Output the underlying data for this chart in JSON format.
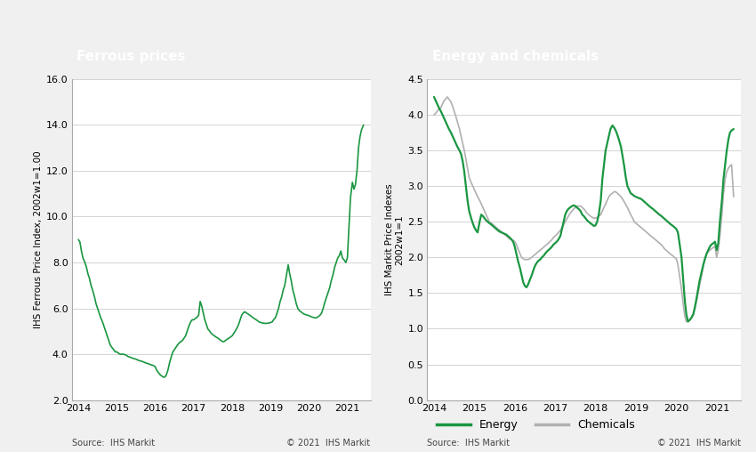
{
  "ferrous_title": "Ferrous prices",
  "energy_title": "Energy and chemicals",
  "ferrous_ylabel": "IHS Ferrous Price Index, 2002w1=1.00",
  "energy_ylabel": "IHS Markit Price Indexes\n2002w1=1",
  "source_text": "Source:  IHS Markit",
  "copyright_text": "© 2021  IHS Markit",
  "header_color": "#8c8c8c",
  "header_text_color": "#ffffff",
  "line_color_green": "#1a9641",
  "line_color_gray": "#b0b0b0",
  "bg_color": "#f0f0f0",
  "plot_bg_color": "#ffffff",
  "ferrous_ylim": [
    2.0,
    16.0
  ],
  "ferrous_yticks": [
    2.0,
    4.0,
    6.0,
    8.0,
    10.0,
    12.0,
    14.0,
    16.0
  ],
  "energy_ylim": [
    0.0,
    4.5
  ],
  "energy_yticks": [
    0.0,
    0.5,
    1.0,
    1.5,
    2.0,
    2.5,
    3.0,
    3.5,
    4.0,
    4.5
  ],
  "ferrous_x": [
    2014.0,
    2014.04,
    2014.08,
    2014.12,
    2014.17,
    2014.21,
    2014.25,
    2014.29,
    2014.33,
    2014.37,
    2014.42,
    2014.46,
    2014.5,
    2014.54,
    2014.58,
    2014.63,
    2014.67,
    2014.71,
    2014.75,
    2014.79,
    2014.83,
    2014.87,
    2014.92,
    2014.96,
    2015.0,
    2015.04,
    2015.08,
    2015.13,
    2015.17,
    2015.21,
    2015.25,
    2015.29,
    2015.33,
    2015.37,
    2015.42,
    2015.46,
    2015.5,
    2015.54,
    2015.58,
    2015.63,
    2015.67,
    2015.71,
    2015.75,
    2015.79,
    2015.83,
    2015.87,
    2015.92,
    2015.96,
    2016.0,
    2016.04,
    2016.08,
    2016.13,
    2016.17,
    2016.21,
    2016.25,
    2016.29,
    2016.33,
    2016.37,
    2016.42,
    2016.46,
    2016.5,
    2016.54,
    2016.58,
    2016.63,
    2016.67,
    2016.71,
    2016.75,
    2016.79,
    2016.83,
    2016.87,
    2016.92,
    2016.96,
    2017.0,
    2017.04,
    2017.08,
    2017.13,
    2017.17,
    2017.21,
    2017.25,
    2017.29,
    2017.33,
    2017.37,
    2017.42,
    2017.46,
    2017.5,
    2017.54,
    2017.58,
    2017.63,
    2017.67,
    2017.71,
    2017.75,
    2017.79,
    2017.83,
    2017.87,
    2017.92,
    2017.96,
    2018.0,
    2018.04,
    2018.08,
    2018.13,
    2018.17,
    2018.21,
    2018.25,
    2018.29,
    2018.33,
    2018.37,
    2018.42,
    2018.46,
    2018.5,
    2018.54,
    2018.58,
    2018.63,
    2018.67,
    2018.71,
    2018.75,
    2018.79,
    2018.83,
    2018.87,
    2018.92,
    2018.96,
    2019.0,
    2019.04,
    2019.08,
    2019.13,
    2019.17,
    2019.21,
    2019.25,
    2019.29,
    2019.33,
    2019.37,
    2019.42,
    2019.46,
    2019.5,
    2019.54,
    2019.58,
    2019.63,
    2019.67,
    2019.71,
    2019.75,
    2019.79,
    2019.83,
    2019.87,
    2019.92,
    2019.96,
    2020.0,
    2020.04,
    2020.08,
    2020.13,
    2020.17,
    2020.21,
    2020.25,
    2020.29,
    2020.33,
    2020.37,
    2020.42,
    2020.46,
    2020.5,
    2020.54,
    2020.58,
    2020.63,
    2020.67,
    2020.71,
    2020.75,
    2020.79,
    2020.83,
    2020.87,
    2020.92,
    2020.96,
    2021.0,
    2021.04,
    2021.08,
    2021.13,
    2021.17,
    2021.21,
    2021.25,
    2021.29,
    2021.33,
    2021.37,
    2021.42
  ],
  "ferrous_y": [
    9.0,
    8.9,
    8.5,
    8.2,
    8.0,
    7.8,
    7.5,
    7.3,
    7.0,
    6.8,
    6.5,
    6.2,
    6.0,
    5.8,
    5.6,
    5.4,
    5.2,
    5.0,
    4.8,
    4.6,
    4.4,
    4.3,
    4.2,
    4.1,
    4.1,
    4.05,
    4.0,
    4.0,
    4.0,
    3.98,
    3.95,
    3.9,
    3.88,
    3.85,
    3.82,
    3.8,
    3.78,
    3.75,
    3.72,
    3.7,
    3.68,
    3.65,
    3.62,
    3.6,
    3.58,
    3.55,
    3.52,
    3.5,
    3.45,
    3.3,
    3.2,
    3.1,
    3.05,
    3.0,
    3.0,
    3.1,
    3.3,
    3.6,
    3.9,
    4.1,
    4.2,
    4.3,
    4.4,
    4.5,
    4.55,
    4.6,
    4.7,
    4.8,
    5.0,
    5.2,
    5.4,
    5.5,
    5.5,
    5.55,
    5.6,
    5.7,
    6.3,
    6.1,
    5.8,
    5.5,
    5.3,
    5.1,
    5.0,
    4.9,
    4.85,
    4.8,
    4.75,
    4.7,
    4.65,
    4.6,
    4.55,
    4.55,
    4.6,
    4.65,
    4.7,
    4.75,
    4.8,
    4.9,
    5.0,
    5.15,
    5.3,
    5.5,
    5.7,
    5.8,
    5.85,
    5.8,
    5.75,
    5.7,
    5.65,
    5.6,
    5.55,
    5.5,
    5.45,
    5.4,
    5.38,
    5.36,
    5.35,
    5.34,
    5.35,
    5.36,
    5.38,
    5.4,
    5.5,
    5.6,
    5.8,
    6.0,
    6.3,
    6.5,
    6.8,
    7.0,
    7.5,
    7.9,
    7.5,
    7.2,
    6.8,
    6.5,
    6.2,
    6.0,
    5.9,
    5.85,
    5.8,
    5.75,
    5.72,
    5.7,
    5.68,
    5.65,
    5.62,
    5.6,
    5.58,
    5.6,
    5.65,
    5.7,
    5.8,
    6.0,
    6.3,
    6.5,
    6.7,
    6.9,
    7.2,
    7.5,
    7.8,
    8.0,
    8.2,
    8.3,
    8.5,
    8.2,
    8.1,
    8.0,
    8.2,
    9.5,
    10.8,
    11.5,
    11.2,
    11.4,
    12.0,
    13.0,
    13.5,
    13.8,
    14.0
  ],
  "energy_x": [
    2014.0,
    2014.04,
    2014.08,
    2014.12,
    2014.17,
    2014.21,
    2014.25,
    2014.29,
    2014.33,
    2014.37,
    2014.42,
    2014.46,
    2014.5,
    2014.54,
    2014.58,
    2014.63,
    2014.67,
    2014.71,
    2014.75,
    2014.79,
    2014.83,
    2014.87,
    2014.92,
    2014.96,
    2015.0,
    2015.04,
    2015.08,
    2015.13,
    2015.17,
    2015.21,
    2015.25,
    2015.29,
    2015.33,
    2015.37,
    2015.42,
    2015.46,
    2015.5,
    2015.54,
    2015.58,
    2015.63,
    2015.67,
    2015.71,
    2015.75,
    2015.79,
    2015.83,
    2015.87,
    2015.92,
    2015.96,
    2016.0,
    2016.04,
    2016.08,
    2016.13,
    2016.17,
    2016.21,
    2016.25,
    2016.29,
    2016.33,
    2016.37,
    2016.42,
    2016.46,
    2016.5,
    2016.54,
    2016.58,
    2016.63,
    2016.67,
    2016.71,
    2016.75,
    2016.79,
    2016.83,
    2016.87,
    2016.92,
    2016.96,
    2017.0,
    2017.04,
    2017.08,
    2017.13,
    2017.17,
    2017.21,
    2017.25,
    2017.29,
    2017.33,
    2017.37,
    2017.42,
    2017.46,
    2017.5,
    2017.54,
    2017.58,
    2017.63,
    2017.67,
    2017.71,
    2017.75,
    2017.79,
    2017.83,
    2017.87,
    2017.92,
    2017.96,
    2018.0,
    2018.04,
    2018.08,
    2018.13,
    2018.17,
    2018.21,
    2018.25,
    2018.29,
    2018.33,
    2018.37,
    2018.42,
    2018.46,
    2018.5,
    2018.54,
    2018.58,
    2018.63,
    2018.67,
    2018.71,
    2018.75,
    2018.79,
    2018.83,
    2018.87,
    2018.92,
    2018.96,
    2019.0,
    2019.04,
    2019.08,
    2019.13,
    2019.17,
    2019.21,
    2019.25,
    2019.29,
    2019.33,
    2019.37,
    2019.42,
    2019.46,
    2019.5,
    2019.54,
    2019.58,
    2019.63,
    2019.67,
    2019.71,
    2019.75,
    2019.79,
    2019.83,
    2019.87,
    2019.92,
    2019.96,
    2020.0,
    2020.04,
    2020.08,
    2020.13,
    2020.17,
    2020.21,
    2020.25,
    2020.29,
    2020.33,
    2020.37,
    2020.42,
    2020.46,
    2020.5,
    2020.54,
    2020.58,
    2020.63,
    2020.67,
    2020.71,
    2020.75,
    2020.79,
    2020.83,
    2020.87,
    2020.92,
    2020.96,
    2021.0,
    2021.04,
    2021.08,
    2021.13,
    2021.17,
    2021.21,
    2021.25,
    2021.29,
    2021.33,
    2021.37,
    2021.42
  ],
  "energy_y": [
    4.25,
    4.2,
    4.15,
    4.1,
    4.05,
    4.0,
    3.95,
    3.9,
    3.85,
    3.8,
    3.75,
    3.7,
    3.65,
    3.6,
    3.55,
    3.5,
    3.45,
    3.35,
    3.2,
    3.0,
    2.8,
    2.65,
    2.55,
    2.48,
    2.42,
    2.38,
    2.35,
    2.5,
    2.6,
    2.58,
    2.55,
    2.52,
    2.5,
    2.48,
    2.46,
    2.44,
    2.42,
    2.4,
    2.38,
    2.36,
    2.35,
    2.34,
    2.33,
    2.32,
    2.3,
    2.28,
    2.25,
    2.22,
    2.15,
    2.05,
    1.95,
    1.85,
    1.75,
    1.65,
    1.6,
    1.58,
    1.62,
    1.68,
    1.75,
    1.82,
    1.88,
    1.92,
    1.95,
    1.97,
    2.0,
    2.02,
    2.05,
    2.08,
    2.1,
    2.12,
    2.15,
    2.18,
    2.2,
    2.22,
    2.25,
    2.3,
    2.4,
    2.5,
    2.6,
    2.65,
    2.68,
    2.7,
    2.72,
    2.73,
    2.72,
    2.7,
    2.68,
    2.65,
    2.6,
    2.58,
    2.55,
    2.52,
    2.5,
    2.48,
    2.46,
    2.44,
    2.45,
    2.5,
    2.6,
    2.8,
    3.1,
    3.3,
    3.5,
    3.6,
    3.7,
    3.8,
    3.85,
    3.82,
    3.78,
    3.72,
    3.65,
    3.55,
    3.42,
    3.28,
    3.12,
    3.0,
    2.95,
    2.9,
    2.88,
    2.86,
    2.85,
    2.84,
    2.83,
    2.82,
    2.8,
    2.78,
    2.76,
    2.74,
    2.72,
    2.7,
    2.68,
    2.66,
    2.64,
    2.62,
    2.6,
    2.58,
    2.56,
    2.54,
    2.52,
    2.5,
    2.48,
    2.46,
    2.44,
    2.42,
    2.4,
    2.35,
    2.2,
    2.0,
    1.7,
    1.4,
    1.2,
    1.1,
    1.12,
    1.15,
    1.2,
    1.3,
    1.42,
    1.55,
    1.68,
    1.8,
    1.9,
    1.98,
    2.05,
    2.1,
    2.15,
    2.18,
    2.2,
    2.22,
    2.1,
    2.2,
    2.5,
    2.8,
    3.1,
    3.3,
    3.5,
    3.65,
    3.75,
    3.78,
    3.8
  ],
  "chemicals_y": [
    4.0,
    4.02,
    4.05,
    4.08,
    4.1,
    4.15,
    4.2,
    4.22,
    4.25,
    4.22,
    4.18,
    4.12,
    4.05,
    3.98,
    3.9,
    3.8,
    3.7,
    3.6,
    3.5,
    3.38,
    3.25,
    3.12,
    3.05,
    3.0,
    2.95,
    2.9,
    2.85,
    2.8,
    2.75,
    2.7,
    2.65,
    2.6,
    2.55,
    2.5,
    2.48,
    2.46,
    2.44,
    2.42,
    2.4,
    2.38,
    2.36,
    2.34,
    2.32,
    2.3,
    2.28,
    2.26,
    2.25,
    2.24,
    2.22,
    2.18,
    2.12,
    2.05,
    2.0,
    1.98,
    1.97,
    1.97,
    1.97,
    1.98,
    2.0,
    2.02,
    2.04,
    2.06,
    2.08,
    2.1,
    2.12,
    2.14,
    2.16,
    2.18,
    2.2,
    2.22,
    2.25,
    2.28,
    2.3,
    2.32,
    2.35,
    2.38,
    2.42,
    2.46,
    2.5,
    2.54,
    2.58,
    2.62,
    2.65,
    2.68,
    2.7,
    2.72,
    2.72,
    2.72,
    2.7,
    2.68,
    2.65,
    2.62,
    2.6,
    2.58,
    2.56,
    2.55,
    2.55,
    2.56,
    2.58,
    2.6,
    2.65,
    2.7,
    2.75,
    2.8,
    2.85,
    2.88,
    2.9,
    2.92,
    2.92,
    2.9,
    2.88,
    2.85,
    2.82,
    2.78,
    2.74,
    2.7,
    2.65,
    2.6,
    2.55,
    2.5,
    2.48,
    2.46,
    2.44,
    2.42,
    2.4,
    2.38,
    2.36,
    2.34,
    2.32,
    2.3,
    2.28,
    2.26,
    2.24,
    2.22,
    2.2,
    2.18,
    2.15,
    2.12,
    2.1,
    2.08,
    2.06,
    2.04,
    2.02,
    2.0,
    1.98,
    1.9,
    1.75,
    1.55,
    1.35,
    1.18,
    1.1,
    1.1,
    1.12,
    1.15,
    1.2,
    1.28,
    1.38,
    1.5,
    1.62,
    1.75,
    1.88,
    1.98,
    2.05,
    2.08,
    2.1,
    2.12,
    2.14,
    2.16,
    2.0,
    2.1,
    2.3,
    2.6,
    2.9,
    3.1,
    3.2,
    3.25,
    3.28,
    3.3,
    2.85
  ],
  "xtick_labels": [
    "2014",
    "2015",
    "2016",
    "2017",
    "2018",
    "2019",
    "2020",
    "2021"
  ],
  "xtick_positions": [
    2014,
    2015,
    2016,
    2017,
    2018,
    2019,
    2020,
    2021
  ]
}
